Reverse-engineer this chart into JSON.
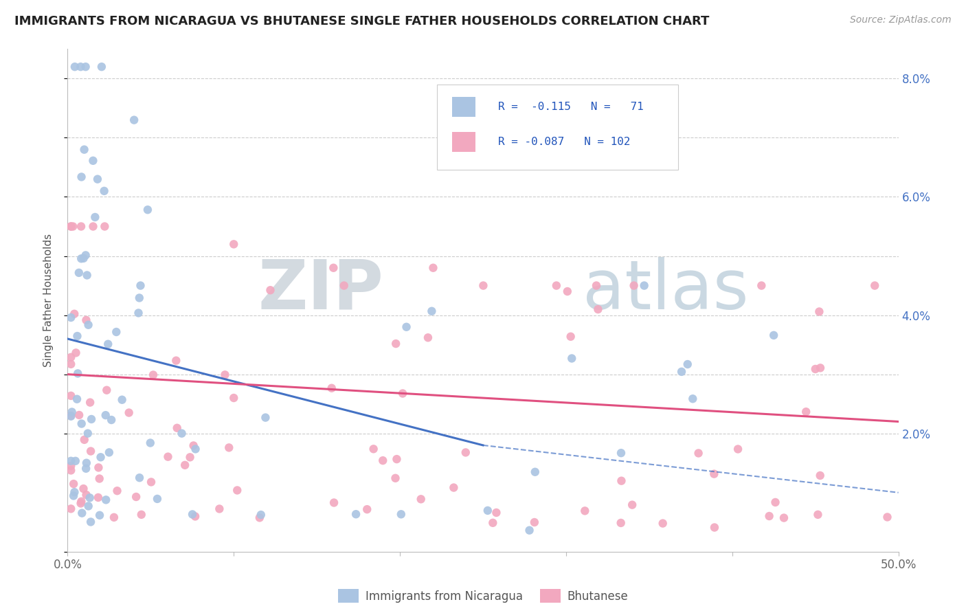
{
  "title": "IMMIGRANTS FROM NICARAGUA VS BHUTANESE SINGLE FATHER HOUSEHOLDS CORRELATION CHART",
  "source": "Source: ZipAtlas.com",
  "ylabel": "Single Father Households",
  "xlim": [
    0.0,
    0.5
  ],
  "ylim": [
    0.0,
    0.085
  ],
  "ytick_values": [
    0.0,
    0.02,
    0.03,
    0.04,
    0.05,
    0.06,
    0.07,
    0.08
  ],
  "ytick_labels": [
    "",
    "2.0%",
    "",
    "4.0%",
    "",
    "6.0%",
    "",
    "8.0%"
  ],
  "xtick_values": [
    0.0,
    0.1,
    0.2,
    0.3,
    0.4,
    0.5
  ],
  "xtick_labels": [
    "0.0%",
    "",
    "",
    "",
    "",
    "50.0%"
  ],
  "color_blue": "#aac4e2",
  "color_pink": "#f2a8bf",
  "line_color_blue": "#4472c4",
  "line_color_pink": "#e05080",
  "background_color": "#ffffff",
  "watermark_text": "ZIPatlas",
  "watermark_color": "#d0dce8",
  "watermark_color2": "#c8d8e8"
}
